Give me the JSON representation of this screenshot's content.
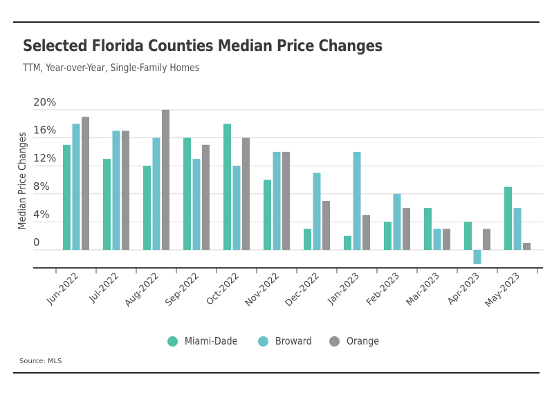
{
  "chart_data": {
    "type": "bar",
    "title": "Selected Florida Counties Median Price Changes",
    "subtitle": "TTM, Year-over-Year, Single-Family Homes",
    "xlabel": "",
    "ylabel": "Median Price Changes",
    "ylim": [
      -2,
      20
    ],
    "yticks": [
      0,
      4,
      8,
      12,
      16,
      20
    ],
    "ytick_labels": [
      "0",
      "4%",
      "8%",
      "12%",
      "16%",
      "20%"
    ],
    "grid": true,
    "legend_position": "bottom-center",
    "categories": [
      "Jun-2022",
      "Jul-2022",
      "Aug-2022",
      "Sep-2022",
      "Oct-2022",
      "Nov-2022",
      "Dec-2022",
      "Jan-2023",
      "Feb-2023",
      "Mar-2023",
      "Apr-2023",
      "May-2023"
    ],
    "series": [
      {
        "name": "Miami-Dade",
        "color": "#52bfa9",
        "values": [
          15,
          13,
          12,
          16,
          18,
          10,
          3,
          2,
          4,
          6,
          4,
          9
        ]
      },
      {
        "name": "Broward",
        "color": "#6cc1cc",
        "values": [
          18,
          17,
          16,
          13,
          12,
          14,
          11,
          14,
          8,
          3,
          -2,
          6
        ]
      },
      {
        "name": "Orange",
        "color": "#959595",
        "values": [
          19,
          17,
          20,
          15,
          16,
          14,
          7,
          5,
          6,
          3,
          3,
          1
        ]
      }
    ],
    "source": "Source: MLS"
  }
}
